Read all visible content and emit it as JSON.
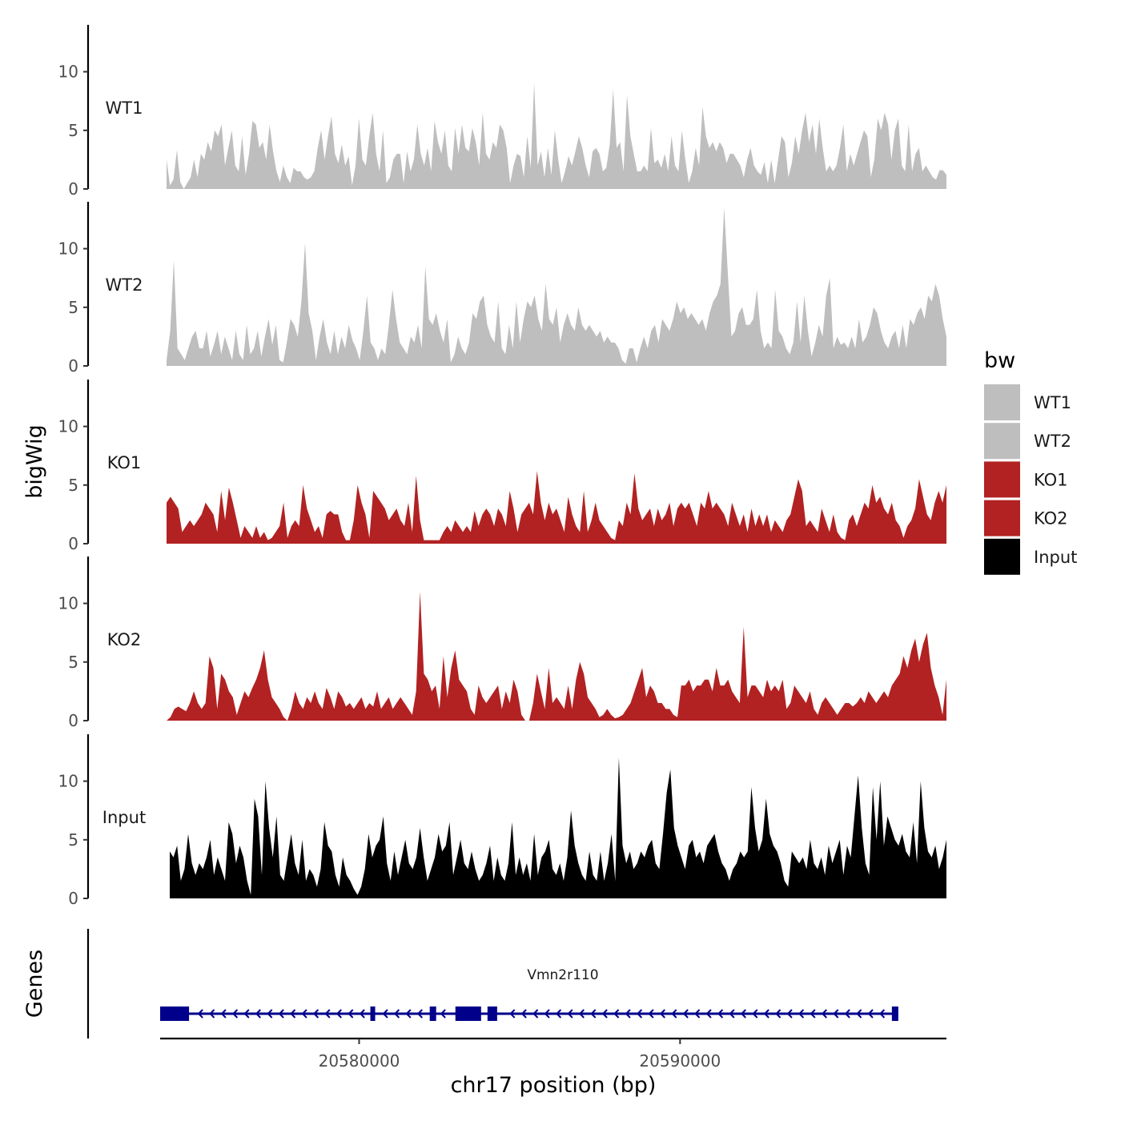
{
  "chart_data": {
    "type": "area",
    "title": "",
    "xlabel": "chr17 position (bp)",
    "ylabel_tracks": "bigWig",
    "ylabel_genes": "Genes",
    "xlim": [
      20573800,
      20598300
    ],
    "x_ticks": [
      20580000,
      20590000
    ],
    "x_tick_labels": [
      "20580000",
      "20590000"
    ],
    "ylim": [
      0,
      14
    ],
    "y_ticks": [
      0,
      5,
      10
    ],
    "y_tick_labels": [
      "0",
      "5",
      "10"
    ],
    "legend": {
      "title": "bw",
      "position": "right",
      "entries": [
        {
          "label": "WT1",
          "color": "#bebebe"
        },
        {
          "label": "WT2",
          "color": "#bebebe"
        },
        {
          "label": "KO1",
          "color": "#b22222"
        },
        {
          "label": "KO2",
          "color": "#b22222"
        },
        {
          "label": "Input",
          "color": "#000000"
        }
      ]
    },
    "series": [
      {
        "name": "WT1",
        "color": "#bebebe",
        "x_start": 20574000,
        "x_end": 20598300,
        "values": [
          2.5,
          0.3,
          0.8,
          3.3,
          0.6,
          0.0,
          0.5,
          1.0,
          2.5,
          1.0,
          3.0,
          2.5,
          4.0,
          3.2,
          5.0,
          4.5,
          5.5,
          2.0,
          3.5,
          5.0,
          2.0,
          1.5,
          4.5,
          1.2,
          3.0,
          5.8,
          5.5,
          3.5,
          4.0,
          2.5,
          5.5,
          3.2,
          1.5,
          0.6,
          2.0,
          1.0,
          0.5,
          1.8,
          1.5,
          1.5,
          1.0,
          0.8,
          1.0,
          1.5,
          3.5,
          5.0,
          2.5,
          4.5,
          6.2,
          3.0,
          2.2,
          3.8,
          2.0,
          2.8,
          0.3,
          2.0,
          6.0,
          2.5,
          2.0,
          4.5,
          6.5,
          3.0,
          1.5,
          5.0,
          0.5,
          1.0,
          2.5,
          3.0,
          3.0,
          0.5,
          3.2,
          1.5,
          2.5,
          5.5,
          3.0,
          2.0,
          3.5,
          1.5,
          5.8,
          4.0,
          3.0,
          5.0,
          2.0,
          1.5,
          5.2,
          3.0,
          5.5,
          3.5,
          3.2,
          5.2,
          4.0,
          2.0,
          6.5,
          3.0,
          2.5,
          4.0,
          3.5,
          5.5,
          5.0,
          3.5,
          0.5,
          2.0,
          3.0,
          2.8,
          1.0,
          4.5,
          1.8,
          9.0,
          2.0,
          3.2,
          1.0,
          3.5,
          1.2,
          5.0,
          2.5,
          0.5,
          1.5,
          2.8,
          2.0,
          3.2,
          4.5,
          3.5,
          2.0,
          1.0,
          3.2,
          3.5,
          3.0,
          1.5,
          1.8,
          3.8,
          8.5,
          3.5,
          4.0,
          1.5,
          8.0,
          4.5,
          3.0,
          1.5,
          1.5,
          2.0,
          1.5,
          5.2,
          2.2,
          2.5,
          1.8,
          3.0,
          1.5,
          4.5,
          2.0,
          1.5,
          5.0,
          2.5,
          0.5,
          1.5,
          3.5,
          2.0,
          7.0,
          4.5,
          3.5,
          4.0,
          3.2,
          4.0,
          3.5,
          2.2,
          3.0,
          3.0,
          2.5,
          2.0,
          1.0,
          2.5,
          3.5,
          2.0,
          1.5,
          1.2,
          2.3,
          0.5,
          2.5,
          0.5,
          2.5,
          4.5,
          4.0,
          1.0,
          2.2,
          4.5,
          3.0,
          5.0,
          6.5,
          4.0,
          5.5,
          3.0,
          6.0,
          3.5,
          1.5,
          2.0,
          1.5,
          2.0,
          3.5,
          5.5,
          1.5,
          3.0,
          2.0,
          3.0,
          4.0,
          5.0,
          4.5,
          1.0,
          2.5,
          6.0,
          5.0,
          6.5,
          5.5,
          2.5,
          5.0,
          6.0,
          2.0,
          1.5,
          5.5,
          1.5,
          3.0,
          3.5,
          1.5,
          2.0,
          1.5,
          1.0,
          0.8,
          1.6,
          1.6,
          1.2
        ]
      },
      {
        "name": "WT2",
        "color": "#bebebe",
        "x_start": 20574000,
        "x_end": 20598300,
        "values": [
          0.5,
          3.0,
          9.0,
          1.5,
          1.0,
          0.5,
          1.5,
          2.5,
          3.0,
          1.5,
          1.5,
          3.0,
          0.8,
          1.8,
          3.0,
          1.0,
          2.5,
          1.5,
          0.5,
          3.0,
          1.0,
          0.5,
          3.5,
          1.0,
          1.5,
          3.0,
          0.8,
          2.5,
          4.0,
          1.8,
          3.5,
          0.5,
          0.3,
          2.0,
          4.0,
          3.5,
          2.5,
          5.5,
          10.5,
          4.5,
          3.0,
          0.5,
          2.5,
          4.0,
          2.0,
          1.0,
          3.0,
          1.0,
          2.5,
          1.5,
          3.5,
          2.2,
          1.5,
          0.5,
          3.0,
          6.0,
          2.0,
          1.5,
          0.5,
          1.5,
          1.0,
          3.5,
          6.5,
          4.0,
          2.0,
          1.5,
          1.0,
          2.5,
          2.0,
          3.5,
          1.5,
          8.5,
          4.0,
          3.5,
          4.5,
          3.0,
          2.0,
          4.0,
          0.3,
          1.0,
          2.5,
          1.5,
          1.0,
          2.0,
          4.5,
          4.0,
          5.5,
          6.0,
          3.5,
          2.5,
          2.0,
          5.5,
          1.5,
          1.0,
          3.5,
          1.5,
          5.5,
          2.0,
          4.0,
          5.5,
          5.0,
          6.0,
          4.0,
          3.0,
          7.0,
          4.0,
          3.5,
          5.0,
          2.0,
          3.5,
          4.5,
          3.5,
          3.0,
          5.0,
          3.5,
          3.0,
          3.5,
          3.0,
          2.5,
          3.0,
          2.0,
          2.5,
          2.0,
          2.0,
          1.5,
          0.5,
          0.2,
          1.5,
          1.5,
          0.3,
          1.5,
          2.5,
          1.5,
          3.0,
          3.5,
          2.0,
          4.0,
          3.5,
          3.0,
          4.0,
          5.5,
          4.5,
          5.0,
          4.0,
          4.5,
          4.0,
          3.5,
          4.0,
          3.0,
          4.5,
          5.5,
          6.0,
          7.0,
          13.5,
          8.0,
          2.5,
          3.0,
          4.5,
          5.0,
          3.5,
          3.5,
          4.0,
          6.5,
          3.0,
          1.5,
          2.0,
          1.5,
          6.5,
          3.0,
          2.5,
          1.5,
          1.0,
          2.0,
          5.5,
          2.0,
          6.0,
          3.0,
          0.8,
          2.0,
          3.5,
          2.5,
          6.0,
          7.5,
          1.5,
          2.5,
          1.8,
          2.0,
          1.5,
          2.5,
          1.5,
          4.0,
          2.0,
          2.5,
          3.5,
          5.0,
          4.5,
          3.0,
          2.0,
          1.5,
          2.5,
          3.0,
          1.5,
          3.5,
          1.5,
          4.0,
          3.5,
          4.5,
          5.0,
          4.0,
          6.0,
          5.5,
          7.0,
          6.0,
          4.0,
          2.5
        ]
      },
      {
        "name": "KO1",
        "color": "#b22222",
        "x_start": 20574000,
        "x_end": 20598300,
        "values": [
          3.5,
          4.0,
          3.5,
          3.0,
          1.0,
          1.5,
          2.0,
          1.5,
          2.0,
          2.5,
          3.5,
          3.0,
          2.5,
          1.0,
          4.5,
          2.0,
          4.8,
          3.5,
          2.0,
          0.5,
          1.5,
          1.0,
          0.5,
          1.5,
          0.5,
          1.0,
          0.3,
          0.5,
          1.0,
          1.5,
          3.5,
          0.5,
          1.5,
          2.0,
          1.5,
          5.0,
          3.0,
          2.0,
          1.0,
          1.5,
          0.5,
          2.5,
          2.8,
          2.5,
          2.5,
          1.0,
          0.3,
          0.3,
          2.0,
          5.0,
          3.5,
          2.5,
          0.5,
          4.5,
          4.0,
          3.5,
          3.0,
          2.0,
          2.5,
          3.0,
          2.0,
          1.5,
          3.5,
          1.0,
          5.8,
          2.0,
          0.3,
          0.3,
          0.3,
          0.3,
          0.3,
          1.0,
          1.5,
          1.0,
          2.0,
          1.5,
          1.0,
          1.5,
          1.0,
          2.8,
          1.5,
          2.5,
          3.0,
          2.5,
          1.5,
          3.0,
          2.5,
          1.5,
          4.5,
          3.0,
          1.0,
          2.5,
          3.0,
          3.5,
          2.5,
          6.2,
          3.5,
          2.0,
          3.5,
          2.5,
          3.0,
          2.0,
          1.0,
          4.0,
          2.5,
          1.5,
          1.0,
          4.5,
          1.0,
          2.0,
          3.5,
          2.0,
          1.5,
          1.0,
          0.5,
          0.3,
          2.0,
          1.5,
          3.5,
          2.5,
          6.0,
          3.0,
          2.0,
          2.5,
          3.0,
          1.5,
          3.0,
          2.0,
          2.5,
          3.5,
          1.5,
          3.0,
          3.5,
          3.0,
          3.5,
          2.5,
          1.5,
          3.5,
          3.0,
          4.5,
          3.0,
          3.5,
          3.0,
          2.5,
          1.5,
          3.5,
          2.5,
          1.5,
          2.5,
          1.0,
          3.0,
          1.5,
          2.5,
          1.5,
          2.5,
          1.0,
          2.0,
          1.5,
          1.0,
          2.0,
          2.5,
          4.0,
          5.5,
          4.5,
          1.5,
          2.0,
          1.5,
          1.0,
          3.0,
          2.0,
          1.0,
          2.5,
          1.0,
          0.5,
          0.3,
          2.0,
          2.5,
          1.5,
          2.5,
          3.5,
          3.0,
          5.0,
          3.5,
          4.0,
          3.0,
          2.5,
          3.5,
          2.0,
          1.5,
          0.5,
          1.5,
          2.0,
          3.0,
          5.5,
          4.0,
          2.5,
          2.0,
          3.5,
          4.5,
          3.5,
          5.0
        ]
      },
      {
        "name": "KO2",
        "color": "#b22222",
        "x_start": 20574000,
        "x_end": 20598300,
        "values": [
          0.0,
          0.3,
          1.0,
          1.2,
          1.0,
          0.8,
          1.5,
          2.5,
          1.5,
          1.0,
          1.5,
          5.5,
          4.5,
          1.0,
          4.0,
          3.5,
          2.5,
          2.0,
          0.5,
          1.5,
          2.5,
          2.0,
          2.8,
          3.5,
          4.5,
          6.0,
          3.5,
          2.0,
          1.5,
          1.0,
          0.3,
          0.0,
          1.0,
          2.5,
          1.5,
          1.0,
          2.0,
          1.5,
          2.5,
          1.5,
          1.0,
          2.8,
          2.0,
          1.0,
          2.5,
          2.0,
          1.2,
          1.5,
          1.0,
          1.5,
          2.0,
          1.0,
          1.5,
          1.2,
          2.5,
          1.0,
          1.5,
          2.0,
          1.0,
          1.5,
          2.0,
          1.5,
          1.0,
          0.5,
          2.5,
          11.0,
          4.0,
          3.5,
          2.5,
          3.0,
          1.0,
          5.5,
          2.0,
          4.5,
          6.0,
          3.5,
          3.0,
          2.5,
          1.0,
          0.5,
          3.0,
          2.0,
          1.5,
          2.0,
          2.5,
          3.0,
          1.0,
          2.5,
          1.5,
          3.5,
          2.5,
          0.5,
          0.0,
          0.0,
          1.5,
          4.0,
          2.5,
          1.0,
          4.5,
          1.5,
          2.0,
          1.5,
          1.0,
          3.0,
          1.0,
          3.5,
          5.0,
          4.0,
          2.0,
          1.5,
          1.0,
          0.3,
          0.5,
          1.0,
          0.5,
          0.2,
          0.3,
          0.5,
          1.0,
          1.5,
          2.5,
          3.5,
          4.5,
          2.0,
          3.0,
          2.5,
          1.5,
          1.5,
          1.0,
          1.0,
          0.5,
          0.3,
          3.0,
          3.0,
          3.5,
          2.5,
          3.0,
          3.0,
          3.5,
          3.5,
          2.5,
          4.5,
          3.0,
          3.0,
          3.5,
          2.5,
          2.0,
          1.5,
          8.0,
          2.0,
          3.0,
          3.0,
          2.5,
          2.0,
          3.5,
          2.5,
          3.0,
          2.5,
          3.5,
          1.0,
          1.5,
          3.0,
          2.5,
          2.0,
          1.5,
          2.5,
          1.0,
          0.5,
          1.5,
          2.0,
          1.5,
          1.0,
          0.5,
          1.0,
          1.5,
          1.5,
          1.2,
          1.5,
          2.0,
          1.5,
          2.5,
          2.0,
          1.5,
          2.0,
          2.5,
          2.0,
          3.0,
          3.5,
          4.0,
          5.5,
          4.5,
          6.0,
          7.0,
          5.0,
          6.5,
          7.5,
          4.5,
          3.0,
          2.0,
          0.5,
          3.5
        ]
      },
      {
        "name": "Input",
        "color": "#000000",
        "x_start": 20574100,
        "x_end": 20598300,
        "values": [
          4.0,
          3.5,
          4.5,
          1.5,
          2.5,
          5.5,
          3.0,
          2.0,
          3.0,
          2.5,
          3.5,
          5.0,
          2.0,
          3.5,
          2.5,
          1.5,
          6.5,
          5.5,
          3.0,
          4.5,
          3.5,
          1.5,
          0.3,
          8.5,
          7.0,
          2.0,
          10.0,
          6.0,
          3.5,
          7.0,
          2.0,
          1.5,
          3.5,
          5.5,
          3.0,
          2.0,
          5.0,
          1.5,
          2.5,
          2.0,
          1.0,
          2.5,
          6.5,
          4.5,
          4.0,
          2.0,
          1.0,
          3.5,
          2.0,
          1.5,
          0.8,
          0.3,
          1.0,
          2.5,
          5.5,
          3.5,
          4.5,
          5.0,
          7.0,
          3.0,
          1.5,
          4.0,
          2.0,
          3.5,
          5.0,
          3.0,
          2.5,
          3.5,
          6.0,
          3.5,
          1.5,
          2.5,
          3.5,
          5.5,
          4.0,
          4.5,
          6.5,
          2.0,
          3.5,
          5.0,
          3.0,
          2.5,
          4.0,
          2.5,
          1.5,
          2.0,
          3.0,
          4.5,
          1.5,
          3.5,
          2.0,
          1.5,
          3.0,
          6.5,
          2.0,
          3.5,
          2.0,
          3.0,
          1.5,
          5.5,
          2.0,
          3.5,
          4.0,
          5.0,
          2.5,
          2.0,
          3.0,
          1.5,
          3.5,
          7.5,
          4.5,
          3.0,
          2.0,
          1.5,
          4.0,
          2.0,
          1.5,
          4.0,
          1.5,
          3.0,
          5.5,
          1.5,
          12.0,
          4.5,
          3.0,
          4.0,
          2.5,
          3.0,
          4.0,
          3.5,
          4.5,
          5.0,
          3.0,
          2.5,
          5.5,
          9.0,
          11.0,
          6.0,
          4.5,
          3.5,
          2.5,
          4.5,
          5.0,
          3.5,
          4.0,
          3.0,
          4.5,
          5.0,
          5.5,
          4.0,
          3.0,
          2.5,
          1.5,
          2.5,
          3.0,
          4.0,
          3.5,
          4.0,
          9.5,
          6.0,
          4.0,
          5.0,
          8.5,
          5.5,
          4.5,
          4.0,
          3.0,
          1.5,
          1.0,
          4.0,
          3.5,
          3.0,
          3.5,
          2.5,
          5.0,
          3.0,
          2.5,
          3.5,
          2.0,
          4.5,
          3.0,
          4.0,
          5.0,
          2.0,
          4.5,
          3.5,
          7.0,
          10.5,
          6.0,
          3.0,
          2.0,
          9.5,
          5.0,
          10.0,
          4.5,
          7.0,
          6.0,
          5.0,
          4.5,
          5.5,
          4.0,
          3.5,
          6.5,
          3.0,
          10.0,
          6.0,
          4.0,
          3.5,
          4.5,
          2.5,
          3.5,
          5.0
        ]
      }
    ],
    "gene_track": {
      "name": "Vmn2r110",
      "color": "#00008b",
      "strand": "-",
      "start": 20573800,
      "end": 20596800,
      "exons": [
        {
          "start": 20573800,
          "end": 20574700,
          "thick": true
        },
        {
          "start": 20580350,
          "end": 20580500,
          "thick": false
        },
        {
          "start": 20582200,
          "end": 20582400,
          "thick": false
        },
        {
          "start": 20583000,
          "end": 20583800,
          "thick": true
        },
        {
          "start": 20584000,
          "end": 20584300,
          "thick": false
        },
        {
          "start": 20596600,
          "end": 20596800,
          "thick": false
        }
      ]
    }
  }
}
